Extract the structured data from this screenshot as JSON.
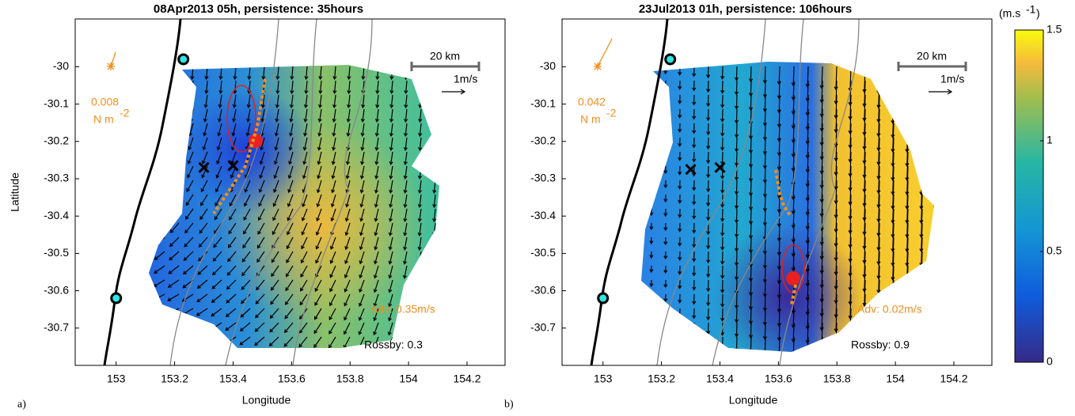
{
  "chart_data": [
    {
      "type": "quiver",
      "title": "08Apr2013 05h, persistence: 35hours",
      "xlabel": "Longitude",
      "ylabel": "Latitude",
      "xlim": [
        152.86,
        154.33
      ],
      "ylim": [
        -30.8,
        -29.872
      ],
      "xticks": [
        153,
        153.2,
        153.4,
        153.6,
        153.8,
        154,
        154.2
      ],
      "yticks": [
        -30,
        -30.1,
        -30.2,
        -30.3,
        -30.4,
        -30.5,
        -30.6,
        -30.7
      ],
      "stations": {
        "x": [
          153.23,
          153.0
        ],
        "y": [
          -29.98,
          -30.62
        ]
      },
      "crosses": {
        "x": [
          153.3,
          153.4
        ],
        "y": [
          -30.27,
          -30.265
        ]
      },
      "wind_stress": "0.008",
      "stress_unit": "N m",
      "stress_exponent": "-2",
      "scale_bar": "20 km",
      "reference_arrow": "1m/s",
      "advection": "Adv: 0.35m/s",
      "rossby": "Rossby: 0.3",
      "panel_label": "a)"
    },
    {
      "type": "quiver",
      "title": "23Jul2013 01h, persistence: 106hours",
      "xlabel": "Longitude",
      "xlim": [
        152.86,
        154.33
      ],
      "ylim": [
        -30.8,
        -29.872
      ],
      "xticks": [
        153,
        153.2,
        153.4,
        153.6,
        153.8,
        154,
        154.2
      ],
      "yticks": [
        -30,
        -30.1,
        -30.2,
        -30.3,
        -30.4,
        -30.5,
        -30.6,
        -30.7
      ],
      "stations": {
        "x": [
          153.23,
          153.0
        ],
        "y": [
          -29.98,
          -30.62
        ]
      },
      "crosses": {
        "x": [
          153.3,
          153.4
        ],
        "y": [
          -30.275,
          -30.27
        ]
      },
      "wind_stress": "0.042",
      "stress_unit": "N m",
      "stress_exponent": "-2",
      "scale_bar": "20 km",
      "reference_arrow": "1m/s",
      "advection": "Adv: 0.02m/s",
      "rossby": "Rossby: 0.9",
      "panel_label": "b)"
    }
  ],
  "colorbar": {
    "label": "(m.s",
    "label_exponent": "-1",
    "label_end": ")",
    "lim": [
      0,
      1.5
    ],
    "ticks": [
      0,
      0.5,
      1,
      1.5
    ]
  }
}
